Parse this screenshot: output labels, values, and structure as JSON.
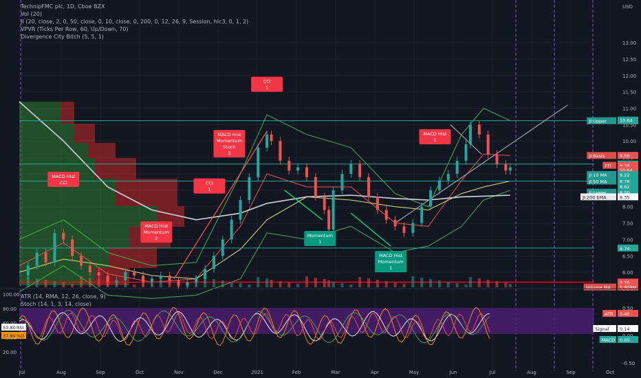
{
  "legend": {
    "title": "TechnipFMC plc, 1D, Cboe BZX",
    "lines": [
      "Vol (20)",
      "JI (20, close, 2, 0, 50, close, 0, 10, close, 0, 200, 0, 12, 26, 9, Session, hlc3, 0, 1, 2)",
      "VPVR (Ticks Per Row, 60, Up/Down, 70)",
      "Divergence City Bitch (5, 5, 1)"
    ],
    "lower_lines": [
      "ATR (14, RMA, 12, 26, close, 9)",
      "Stoch (14, 1, 3, 14, close)"
    ]
  },
  "colors": {
    "background": "#131722",
    "grid": "#1e222d",
    "up": "#26a69a",
    "down": "#ef5350",
    "bull_box": "#089981",
    "bear_box": "#f23645",
    "vp_up": "#2e7d32",
    "vp_down": "#c62828"
  },
  "chart_data": {
    "type": "line",
    "symbol": "TechnipFMC plc",
    "interval": "1D",
    "exchange": "Cboe BZX",
    "currency": "USD",
    "price_axis": {
      "ylim": [
        5.5,
        14.3
      ],
      "ticks": [
        "13.00",
        "12.50",
        "12.00",
        "11.50",
        "11.00",
        "10.50",
        "10.00",
        "9.50",
        "9.00",
        "8.50",
        "8.00",
        "7.50",
        "7.00",
        "6.50",
        "6.00",
        "5.50"
      ]
    },
    "x_axis": {
      "labels": [
        "Jul",
        "Aug",
        "Sep",
        "Oct",
        "Nov",
        "Dec",
        "2021",
        "Feb",
        "Mar",
        "Apr",
        "May",
        "Jun",
        "Jul",
        "Aug",
        "Sep",
        "Oct"
      ]
    },
    "price_labels": [
      {
        "label": "JI:Upper",
        "value": "10.62",
        "price": 10.62,
        "color": "#26a69a"
      },
      {
        "label": "",
        "value": "10.64",
        "price": 10.64,
        "color": "#26a69a"
      },
      {
        "label": "JI:Basis",
        "value": "9.56",
        "price": 9.56,
        "color": "#ef5350"
      },
      {
        "label": "",
        "value": "9.30",
        "price": 9.3,
        "color": "#26a69a"
      },
      {
        "label": "FTI",
        "value": "9.26",
        "price": 9.26,
        "color": "#ef5350"
      },
      {
        "label": "",
        "value": "50:64",
        "price": 9.12,
        "color": "#ef5350"
      },
      {
        "label": "JI:10 MA",
        "value": "9.22",
        "price": 8.98,
        "color": "#26a69a"
      },
      {
        "label": "JI:50 MA",
        "value": "8.78",
        "price": 8.78,
        "color": "#26a69a"
      },
      {
        "label": "",
        "value": "8.62",
        "price": 8.62,
        "color": "#26a69a"
      },
      {
        "label": "JI:Lower",
        "value": "8.50",
        "price": 8.44,
        "color": "#26a69a"
      },
      {
        "label": "JI:200 EMA",
        "value": "8.35",
        "price": 8.3,
        "color": "#ffffff"
      },
      {
        "label": "",
        "value": "6.74",
        "price": 6.74,
        "color": "#26a69a"
      },
      {
        "label": "",
        "value": "5.70",
        "price": 5.7,
        "color": "#ef5350"
      },
      {
        "label": "Volume MA",
        "value": "5.909M",
        "price": 5.55,
        "color": "#ef5350"
      }
    ],
    "horizontal_lines": [
      {
        "price": 10.62,
        "color": "#26a69a"
      },
      {
        "price": 9.3,
        "color": "#26a69a"
      },
      {
        "price": 8.78,
        "color": "#26a69a"
      },
      {
        "price": 6.74,
        "color": "#26a69a"
      },
      {
        "price": 5.7,
        "color": "#ff0000"
      }
    ],
    "close_series": [
      [
        0,
        5.9
      ],
      [
        4,
        6.2
      ],
      [
        8,
        6.6
      ],
      [
        12,
        6.3
      ],
      [
        16,
        7.2
      ],
      [
        20,
        7.0
      ],
      [
        24,
        6.5
      ],
      [
        28,
        6.2
      ],
      [
        32,
        6.0
      ],
      [
        36,
        5.9
      ],
      [
        40,
        5.7
      ],
      [
        44,
        5.75
      ],
      [
        48,
        6.0
      ],
      [
        52,
        5.9
      ],
      [
        56,
        5.7
      ],
      [
        60,
        5.8
      ],
      [
        64,
        5.9
      ],
      [
        68,
        5.75
      ],
      [
        72,
        5.6
      ],
      [
        76,
        5.7
      ],
      [
        80,
        5.8
      ],
      [
        84,
        6.1
      ],
      [
        88,
        6.5
      ],
      [
        92,
        7.0
      ],
      [
        96,
        7.6
      ],
      [
        100,
        8.2
      ],
      [
        104,
        8.9
      ],
      [
        108,
        9.8
      ],
      [
        112,
        10.2
      ],
      [
        114,
        10.0
      ],
      [
        118,
        9.4
      ],
      [
        122,
        9.1
      ],
      [
        126,
        9.2
      ],
      [
        130,
        8.9
      ],
      [
        134,
        8.3
      ],
      [
        138,
        7.9
      ],
      [
        140,
        7.3
      ],
      [
        142,
        8.5
      ],
      [
        146,
        9.0
      ],
      [
        150,
        9.3
      ],
      [
        154,
        8.9
      ],
      [
        158,
        8.3
      ],
      [
        162,
        7.9
      ],
      [
        166,
        7.6
      ],
      [
        170,
        7.4
      ],
      [
        174,
        7.2
      ],
      [
        178,
        7.5
      ],
      [
        182,
        8.0
      ],
      [
        186,
        8.5
      ],
      [
        190,
        8.8
      ],
      [
        194,
        9.0
      ],
      [
        198,
        9.4
      ],
      [
        202,
        9.9
      ],
      [
        204,
        10.5
      ],
      [
        208,
        10.2
      ],
      [
        212,
        9.6
      ],
      [
        216,
        9.3
      ],
      [
        220,
        9.1
      ],
      [
        222,
        9.2
      ]
    ],
    "series": [
      {
        "name": "JI:Upper",
        "values": [
          [
            0,
            7.0
          ],
          [
            20,
            7.6
          ],
          [
            40,
            6.6
          ],
          [
            60,
            6.2
          ],
          [
            80,
            6.3
          ],
          [
            100,
            9.0
          ],
          [
            112,
            10.8
          ],
          [
            130,
            10.2
          ],
          [
            150,
            9.8
          ],
          [
            170,
            8.4
          ],
          [
            185,
            8.0
          ],
          [
            200,
            10.2
          ],
          [
            210,
            11.0
          ],
          [
            222,
            10.62
          ]
        ]
      },
      {
        "name": "JI:Lower",
        "values": [
          [
            0,
            5.4
          ],
          [
            20,
            6.2
          ],
          [
            40,
            5.3
          ],
          [
            60,
            5.2
          ],
          [
            80,
            5.3
          ],
          [
            100,
            5.8
          ],
          [
            112,
            7.2
          ],
          [
            130,
            7.0
          ],
          [
            150,
            7.4
          ],
          [
            170,
            6.6
          ],
          [
            185,
            6.8
          ],
          [
            200,
            7.4
          ],
          [
            210,
            8.2
          ],
          [
            222,
            8.5
          ]
        ]
      },
      {
        "name": "JI:Basis",
        "values": [
          [
            0,
            6.2
          ],
          [
            20,
            6.9
          ],
          [
            40,
            5.95
          ],
          [
            60,
            5.7
          ],
          [
            80,
            5.8
          ],
          [
            100,
            7.4
          ],
          [
            112,
            9.0
          ],
          [
            130,
            8.6
          ],
          [
            150,
            8.6
          ],
          [
            170,
            7.5
          ],
          [
            185,
            7.4
          ],
          [
            200,
            8.8
          ],
          [
            210,
            9.6
          ],
          [
            222,
            9.56
          ]
        ]
      },
      {
        "name": "JI:50 MA",
        "values": [
          [
            0,
            6.0
          ],
          [
            20,
            6.4
          ],
          [
            40,
            6.2
          ],
          [
            60,
            5.9
          ],
          [
            80,
            5.8
          ],
          [
            100,
            6.7
          ],
          [
            112,
            7.6
          ],
          [
            130,
            8.3
          ],
          [
            150,
            8.2
          ],
          [
            170,
            8.0
          ],
          [
            185,
            7.9
          ],
          [
            200,
            8.4
          ],
          [
            210,
            8.6
          ],
          [
            222,
            8.78
          ]
        ]
      },
      {
        "name": "JI:200 EMA",
        "values": [
          [
            0,
            11.2
          ],
          [
            20,
            10.0
          ],
          [
            40,
            8.6
          ],
          [
            60,
            7.9
          ],
          [
            80,
            7.6
          ],
          [
            100,
            7.8
          ],
          [
            112,
            8.1
          ],
          [
            130,
            8.3
          ],
          [
            150,
            8.35
          ],
          [
            170,
            8.25
          ],
          [
            185,
            8.2
          ],
          [
            200,
            8.3
          ],
          [
            210,
            8.32
          ],
          [
            222,
            8.35
          ]
        ]
      }
    ],
    "annotations": [
      {
        "text": "MACD Hist\nCCI",
        "x": 20,
        "price": 8.6,
        "kind": "bear"
      },
      {
        "text": "MACD Hist\nMomentum\n2",
        "x": 62,
        "price": 6.9,
        "kind": "bear"
      },
      {
        "text": "CCI\n1",
        "x": 86,
        "price": 8.4,
        "kind": "bear"
      },
      {
        "text": "MACD Hist\nMomentum\nStoch\n3",
        "x": 95,
        "price": 9.5,
        "kind": "bear"
      },
      {
        "text": "CCI\n1",
        "x": 112,
        "price": 11.5,
        "kind": "bear"
      },
      {
        "text": "Momentum\n1",
        "x": 136,
        "price": 6.8,
        "kind": "bull"
      },
      {
        "text": "MACD Hist\nMomentum\n1",
        "x": 168,
        "price": 6.0,
        "kind": "bull"
      },
      {
        "text": "MACD Hist\n1",
        "x": 188,
        "price": 9.9,
        "kind": "bear"
      }
    ],
    "trend_lines": [
      {
        "from": [
          70,
          5.8
        ],
        "to": [
          112,
          10.3
        ],
        "color": "#ef5350"
      },
      {
        "from": [
          120,
          8.5
        ],
        "to": [
          137,
          7.6
        ],
        "color": "#00e676"
      },
      {
        "from": [
          150,
          7.8
        ],
        "to": [
          168,
          6.8
        ],
        "color": "#00e676"
      },
      {
        "from": [
          170,
          7.5
        ],
        "to": [
          248,
          11.1
        ],
        "color": "#9598a1"
      },
      {
        "from": [
          195,
          10.5
        ],
        "to": [
          209,
          9.6
        ],
        "color": "#9598a1"
      }
    ],
    "volume_ma_label": "Volume MA",
    "lower_pane": {
      "indicators": [
        "ATR (14, RMA, 12, 26, close, 9)",
        "Stoch (14, 1, 3, 14, close)"
      ],
      "left_ticks": [
        "100.00",
        "80.00",
        "60.00",
        "40.00",
        "20.00"
      ],
      "right_ticks": [
        "0.50",
        "0.00",
        "-0.50"
      ],
      "left_labels": [
        {
          "value": "50.80",
          "tag": "RSI"
        },
        {
          "value": "37.89",
          "tag": "%D"
        }
      ],
      "right_labels": [
        {
          "label": "ATR",
          "value": "0.40"
        },
        {
          "label": "Signal",
          "value": "0.14"
        },
        {
          "label": "MACD",
          "value": "0.05"
        }
      ]
    }
  }
}
